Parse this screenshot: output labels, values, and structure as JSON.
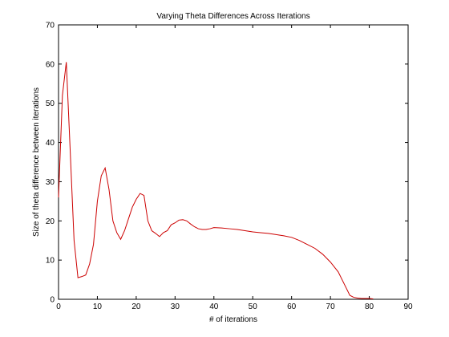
{
  "chart_data": {
    "type": "line",
    "title": "Varying Theta Differences Across Iterations",
    "xlabel": "# of iterations",
    "ylabel": "Size of theta difference between iterations",
    "xlim": [
      0,
      90
    ],
    "ylim": [
      0,
      70
    ],
    "xticks": [
      "0",
      "10",
      "20",
      "30",
      "40",
      "50",
      "60",
      "70",
      "80",
      "90"
    ],
    "yticks": [
      "0",
      "10",
      "20",
      "30",
      "40",
      "50",
      "60",
      "70"
    ],
    "grid": false,
    "legend": "none",
    "line_color": "#cc0000",
    "series": [
      {
        "x": [
          0,
          1,
          2,
          3,
          4,
          5,
          6,
          7,
          8,
          9,
          10,
          11,
          12,
          13,
          14,
          15,
          16,
          17,
          18,
          19,
          20,
          21,
          22,
          23,
          24,
          25,
          26,
          27,
          28,
          29,
          30,
          31,
          32,
          33,
          34,
          35,
          36,
          37,
          38,
          39,
          40,
          42,
          44,
          46,
          48,
          50,
          52,
          54,
          56,
          58,
          60,
          62,
          64,
          66,
          68,
          70,
          72,
          74,
          75,
          76,
          77,
          78,
          79,
          80,
          81
        ],
        "y": [
          26,
          52,
          60.5,
          38,
          15,
          5.5,
          5.8,
          6.2,
          9,
          14,
          25,
          31.5,
          33.5,
          28,
          20,
          17,
          15.3,
          17.5,
          20.5,
          23.5,
          25.5,
          27,
          26.5,
          20,
          17.5,
          16.8,
          16,
          17,
          17.5,
          19,
          19.5,
          20.2,
          20.3,
          20,
          19.2,
          18.5,
          18,
          17.8,
          17.8,
          18,
          18.3,
          18.2,
          18,
          17.8,
          17.5,
          17.2,
          17,
          16.8,
          16.5,
          16.2,
          15.8,
          15,
          14,
          13,
          11.5,
          9.5,
          7,
          3,
          1,
          0.5,
          0.3,
          0.2,
          0.2,
          0.2,
          0.1
        ]
      }
    ]
  }
}
